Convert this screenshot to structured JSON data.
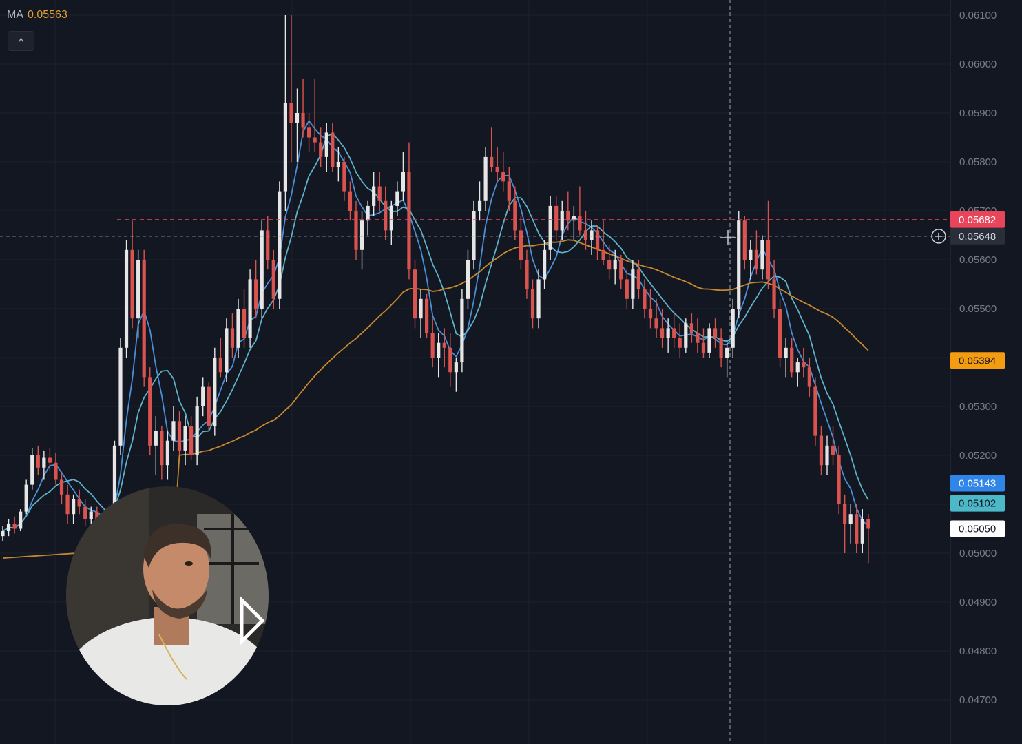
{
  "legend": {
    "label": "MA",
    "value": "0.05563"
  },
  "toolbar": {
    "collapse_icon": "chevron-up-icon",
    "collapse_glyph": "^"
  },
  "crosshair": {
    "plus_icon": "plus-circle-icon"
  },
  "webcam": {
    "description_icon": "presenter-webcam",
    "logo_icon": "play-logo-icon"
  },
  "colors": {
    "background": "#131722",
    "up": "#e6e6e6",
    "down": "#d9534f",
    "ma_fast": "#4a90d9",
    "ma_mid": "#5fb3c8",
    "ma_slow": "#c8892e",
    "level_red": "#e8445a",
    "level_orange": "#f39c12",
    "level_blue": "#2f86e8",
    "level_teal": "#4cb8c8",
    "level_white": "#ffffff"
  },
  "chart_data": {
    "type": "candlestick",
    "y_axis": {
      "range": [
        0.0465,
        0.0613
      ],
      "ticks": [
        "0.06100",
        "0.06000",
        "0.05900",
        "0.05800",
        "0.05700",
        "0.05600",
        "0.05500",
        "0.05300",
        "0.05200",
        "0.05000",
        "0.04900",
        "0.04800",
        "0.04700"
      ]
    },
    "price_tags": [
      {
        "value": "0.05682",
        "color": "#e8445a",
        "text_color": "#ffffff",
        "line": "dashed"
      },
      {
        "value": "0.05648",
        "color": "#2a2e39",
        "text_color": "#d1d4dc",
        "line": "dashed-crosshair"
      },
      {
        "value": "0.05394",
        "color": "#f39c12",
        "text_color": "#131722",
        "line": "none"
      },
      {
        "value": "0.05143",
        "color": "#2f86e8",
        "text_color": "#ffffff",
        "line": "none"
      },
      {
        "value": "0.05102",
        "color": "#4cb8c8",
        "text_color": "#131722",
        "line": "none"
      },
      {
        "value": "0.05050",
        "color": "#ffffff",
        "text_color": "#131722",
        "line": "none"
      }
    ],
    "candles": [
      [
        0.05035,
        0.05055,
        0.05025,
        0.05045
      ],
      [
        0.05045,
        0.0507,
        0.05035,
        0.0506
      ],
      [
        0.0506,
        0.05075,
        0.0504,
        0.0505
      ],
      [
        0.0505,
        0.0509,
        0.05045,
        0.05085
      ],
      [
        0.05085,
        0.0515,
        0.0508,
        0.0514
      ],
      [
        0.0514,
        0.05215,
        0.0513,
        0.052
      ],
      [
        0.052,
        0.0522,
        0.0516,
        0.05175
      ],
      [
        0.05175,
        0.0521,
        0.0515,
        0.05195
      ],
      [
        0.05195,
        0.05215,
        0.0517,
        0.05185
      ],
      [
        0.05185,
        0.05205,
        0.0514,
        0.0515
      ],
      [
        0.0515,
        0.05165,
        0.051,
        0.0512
      ],
      [
        0.0512,
        0.0514,
        0.0506,
        0.0508
      ],
      [
        0.0508,
        0.0512,
        0.0506,
        0.0511
      ],
      [
        0.0511,
        0.0513,
        0.0508,
        0.05095
      ],
      [
        0.05095,
        0.0511,
        0.05055,
        0.0507
      ],
      [
        0.0507,
        0.05095,
        0.0505,
        0.05085
      ],
      [
        0.05085,
        0.05095,
        0.0504,
        0.0506
      ],
      [
        0.0506,
        0.0508,
        0.0504,
        0.05065
      ],
      [
        0.05065,
        0.05075,
        0.0502,
        0.0504
      ],
      [
        0.0504,
        0.0523,
        0.0503,
        0.0522
      ],
      [
        0.0522,
        0.0544,
        0.052,
        0.0542
      ],
      [
        0.0542,
        0.0564,
        0.054,
        0.0562
      ],
      [
        0.0562,
        0.0568,
        0.0546,
        0.0548
      ],
      [
        0.0548,
        0.0562,
        0.0544,
        0.056
      ],
      [
        0.056,
        0.0562,
        0.0534,
        0.0536
      ],
      [
        0.0536,
        0.0538,
        0.052,
        0.0522
      ],
      [
        0.0522,
        0.0528,
        0.0516,
        0.0525
      ],
      [
        0.0525,
        0.0526,
        0.0515,
        0.0518
      ],
      [
        0.0518,
        0.0525,
        0.0515,
        0.0523
      ],
      [
        0.0523,
        0.053,
        0.0521,
        0.0527
      ],
      [
        0.0527,
        0.0529,
        0.052,
        0.0521
      ],
      [
        0.0521,
        0.0528,
        0.0518,
        0.0526
      ],
      [
        0.0526,
        0.0528,
        0.0519,
        0.052
      ],
      [
        0.052,
        0.0532,
        0.0518,
        0.053
      ],
      [
        0.053,
        0.0536,
        0.0528,
        0.0534
      ],
      [
        0.0534,
        0.0535,
        0.0525,
        0.0526
      ],
      [
        0.0526,
        0.0542,
        0.0524,
        0.054
      ],
      [
        0.054,
        0.0544,
        0.0536,
        0.0537
      ],
      [
        0.0537,
        0.0548,
        0.0535,
        0.0546
      ],
      [
        0.0546,
        0.0549,
        0.054,
        0.0542
      ],
      [
        0.0542,
        0.0552,
        0.054,
        0.055
      ],
      [
        0.055,
        0.0554,
        0.0542,
        0.0544
      ],
      [
        0.0544,
        0.0558,
        0.0542,
        0.0556
      ],
      [
        0.0556,
        0.056,
        0.0548,
        0.055
      ],
      [
        0.055,
        0.0568,
        0.0548,
        0.0566
      ],
      [
        0.0566,
        0.0569,
        0.0558,
        0.056
      ],
      [
        0.056,
        0.0562,
        0.055,
        0.0552
      ],
      [
        0.0552,
        0.0576,
        0.055,
        0.0574
      ],
      [
        0.0574,
        0.061,
        0.057,
        0.0592
      ],
      [
        0.0592,
        0.061,
        0.058,
        0.0588
      ],
      [
        0.0588,
        0.0595,
        0.058,
        0.059
      ],
      [
        0.059,
        0.0597,
        0.0585,
        0.0587
      ],
      [
        0.0587,
        0.059,
        0.0582,
        0.0585
      ],
      [
        0.0585,
        0.0597,
        0.0582,
        0.0584
      ],
      [
        0.0584,
        0.0587,
        0.0579,
        0.0581
      ],
      [
        0.0581,
        0.0588,
        0.0578,
        0.0586
      ],
      [
        0.0586,
        0.0588,
        0.0578,
        0.0579
      ],
      [
        0.0579,
        0.0583,
        0.0576,
        0.058
      ],
      [
        0.058,
        0.0581,
        0.0572,
        0.0574
      ],
      [
        0.0574,
        0.0576,
        0.0568,
        0.057
      ],
      [
        0.057,
        0.0572,
        0.056,
        0.0562
      ],
      [
        0.0562,
        0.057,
        0.0558,
        0.0568
      ],
      [
        0.0568,
        0.0572,
        0.0565,
        0.0571
      ],
      [
        0.0571,
        0.0578,
        0.0569,
        0.0575
      ],
      [
        0.0575,
        0.0578,
        0.057,
        0.0572
      ],
      [
        0.0572,
        0.0575,
        0.0564,
        0.0566
      ],
      [
        0.0566,
        0.0572,
        0.0563,
        0.0571
      ],
      [
        0.0571,
        0.0576,
        0.0569,
        0.0574
      ],
      [
        0.0574,
        0.0582,
        0.0572,
        0.0578
      ],
      [
        0.0578,
        0.0584,
        0.0556,
        0.0558
      ],
      [
        0.0558,
        0.056,
        0.0546,
        0.0548
      ],
      [
        0.0548,
        0.0554,
        0.0544,
        0.0552
      ],
      [
        0.0552,
        0.0553,
        0.0544,
        0.0545
      ],
      [
        0.0545,
        0.0548,
        0.0538,
        0.054
      ],
      [
        0.054,
        0.0545,
        0.0536,
        0.0543
      ],
      [
        0.0543,
        0.0546,
        0.0538,
        0.0542
      ],
      [
        0.0542,
        0.0545,
        0.0534,
        0.0537
      ],
      [
        0.0537,
        0.054,
        0.0533,
        0.0539
      ],
      [
        0.0539,
        0.0554,
        0.0537,
        0.0552
      ],
      [
        0.0552,
        0.0562,
        0.055,
        0.056
      ],
      [
        0.056,
        0.0572,
        0.0558,
        0.057
      ],
      [
        0.057,
        0.0576,
        0.0568,
        0.0572
      ],
      [
        0.0572,
        0.0583,
        0.057,
        0.0581
      ],
      [
        0.0581,
        0.0587,
        0.0578,
        0.0579
      ],
      [
        0.0579,
        0.0583,
        0.0576,
        0.0578
      ],
      [
        0.0578,
        0.0582,
        0.0574,
        0.0576
      ],
      [
        0.0576,
        0.0579,
        0.057,
        0.0572
      ],
      [
        0.0572,
        0.0575,
        0.0564,
        0.0566
      ],
      [
        0.0566,
        0.0569,
        0.0558,
        0.056
      ],
      [
        0.056,
        0.0562,
        0.0552,
        0.0554
      ],
      [
        0.0554,
        0.0556,
        0.0546,
        0.0548
      ],
      [
        0.0548,
        0.0558,
        0.0546,
        0.0556
      ],
      [
        0.0556,
        0.0564,
        0.0554,
        0.0562
      ],
      [
        0.0562,
        0.0573,
        0.056,
        0.0571
      ],
      [
        0.0571,
        0.0573,
        0.0564,
        0.0566
      ],
      [
        0.0566,
        0.0572,
        0.0564,
        0.057
      ],
      [
        0.057,
        0.0574,
        0.0566,
        0.0568
      ],
      [
        0.0568,
        0.0571,
        0.0564,
        0.0569
      ],
      [
        0.0569,
        0.0575,
        0.0565,
        0.0566
      ],
      [
        0.0566,
        0.057,
        0.0562,
        0.0564
      ],
      [
        0.0564,
        0.0568,
        0.0561,
        0.0566
      ],
      [
        0.0566,
        0.0567,
        0.056,
        0.0562
      ],
      [
        0.0562,
        0.0568,
        0.0559,
        0.056
      ],
      [
        0.056,
        0.0563,
        0.0556,
        0.0558
      ],
      [
        0.0558,
        0.0562,
        0.0555,
        0.056
      ],
      [
        0.056,
        0.0561,
        0.0554,
        0.0556
      ],
      [
        0.0556,
        0.0558,
        0.055,
        0.0552
      ],
      [
        0.0552,
        0.056,
        0.055,
        0.0558
      ],
      [
        0.0558,
        0.056,
        0.0552,
        0.0554
      ],
      [
        0.0554,
        0.0556,
        0.0548,
        0.055
      ],
      [
        0.055,
        0.0554,
        0.0546,
        0.0548
      ],
      [
        0.0548,
        0.0552,
        0.0544,
        0.0546
      ],
      [
        0.0546,
        0.055,
        0.0542,
        0.0544
      ],
      [
        0.0544,
        0.0548,
        0.0541,
        0.0546
      ],
      [
        0.0546,
        0.0549,
        0.0542,
        0.0544
      ],
      [
        0.0544,
        0.0547,
        0.054,
        0.0542
      ],
      [
        0.0542,
        0.0548,
        0.0541,
        0.0547
      ],
      [
        0.0547,
        0.0549,
        0.0543,
        0.0545
      ],
      [
        0.0545,
        0.0548,
        0.0541,
        0.0543
      ],
      [
        0.0543,
        0.0546,
        0.054,
        0.0541
      ],
      [
        0.0541,
        0.0547,
        0.054,
        0.0546
      ],
      [
        0.0546,
        0.0548,
        0.0542,
        0.0544
      ],
      [
        0.0544,
        0.0546,
        0.0538,
        0.054
      ],
      [
        0.054,
        0.0543,
        0.0536,
        0.0542
      ],
      [
        0.0542,
        0.0552,
        0.054,
        0.055
      ],
      [
        0.055,
        0.057,
        0.0548,
        0.0568
      ],
      [
        0.0568,
        0.0569,
        0.0558,
        0.056
      ],
      [
        0.056,
        0.0564,
        0.0556,
        0.0562
      ],
      [
        0.0562,
        0.0566,
        0.0557,
        0.0558
      ],
      [
        0.0558,
        0.0565,
        0.0556,
        0.0564
      ],
      [
        0.0564,
        0.0572,
        0.0554,
        0.0556
      ],
      [
        0.0556,
        0.056,
        0.0548,
        0.055
      ],
      [
        0.055,
        0.0552,
        0.0538,
        0.054
      ],
      [
        0.054,
        0.0544,
        0.0536,
        0.0542
      ],
      [
        0.0542,
        0.0544,
        0.0536,
        0.0537
      ],
      [
        0.0537,
        0.054,
        0.0534,
        0.0539
      ],
      [
        0.0539,
        0.0542,
        0.0536,
        0.0538
      ],
      [
        0.0538,
        0.054,
        0.0532,
        0.0534
      ],
      [
        0.0534,
        0.0536,
        0.0522,
        0.0524
      ],
      [
        0.0524,
        0.0526,
        0.0516,
        0.0518
      ],
      [
        0.0518,
        0.0524,
        0.0516,
        0.0522
      ],
      [
        0.0522,
        0.0526,
        0.0518,
        0.052
      ],
      [
        0.052,
        0.0522,
        0.0508,
        0.051
      ],
      [
        0.051,
        0.0512,
        0.05,
        0.0506
      ],
      [
        0.0506,
        0.051,
        0.0502,
        0.0508
      ],
      [
        0.0508,
        0.051,
        0.05,
        0.0502
      ],
      [
        0.0502,
        0.0509,
        0.05,
        0.0507
      ],
      [
        0.0507,
        0.0508,
        0.0498,
        0.0505
      ]
    ],
    "moving_averages": [
      {
        "name": "MA",
        "color": "#4a90d9",
        "period": 5
      },
      {
        "name": "MA",
        "color": "#5fb3c8",
        "period": 9
      },
      {
        "name": "MA",
        "color": "#c8892e",
        "period": 50
      }
    ],
    "grid": true
  }
}
